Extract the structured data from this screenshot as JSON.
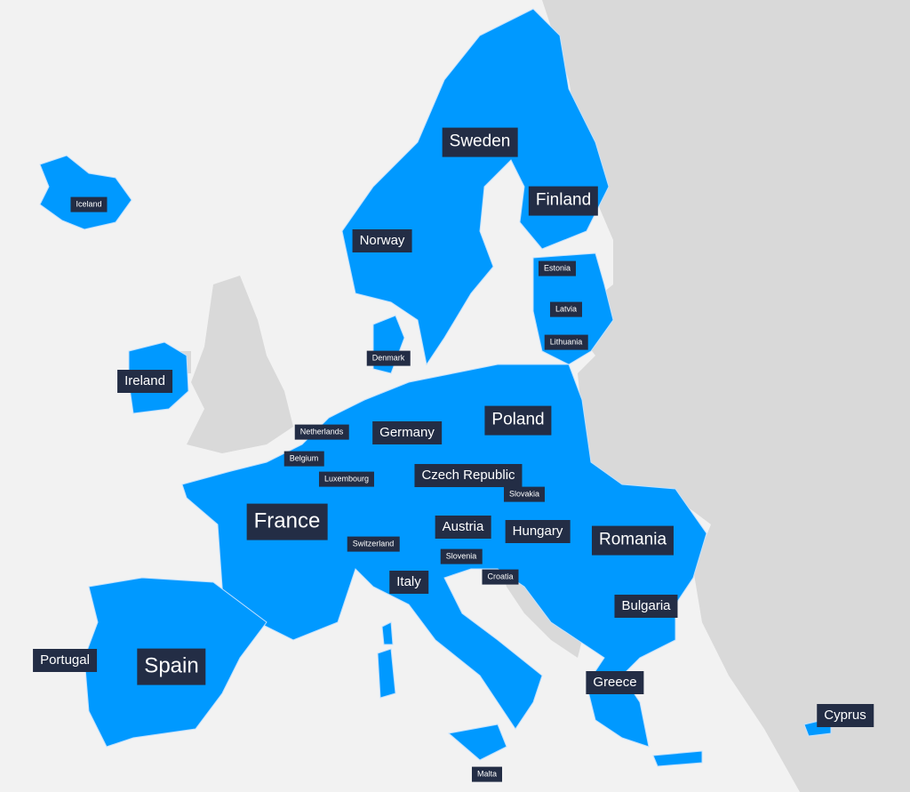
{
  "colors": {
    "eu": "#0099ff",
    "non_eu": "#d9d9d9",
    "sea": "#f2f2f2",
    "label_bg": "#232d45",
    "label_text": "#ffffff",
    "border": "#cfe8ff"
  },
  "labels": [
    {
      "id": "sweden",
      "text": "Sweden"
    },
    {
      "id": "finland",
      "text": "Finland"
    },
    {
      "id": "norway",
      "text": "Norway"
    },
    {
      "id": "iceland",
      "text": "Iceland"
    },
    {
      "id": "estonia",
      "text": "Estonia"
    },
    {
      "id": "latvia",
      "text": "Latvia"
    },
    {
      "id": "lithuania",
      "text": "Lithuania"
    },
    {
      "id": "denmark",
      "text": "Denmark"
    },
    {
      "id": "ireland",
      "text": "Ireland"
    },
    {
      "id": "netherlands",
      "text": "Netherlands"
    },
    {
      "id": "germany",
      "text": "Germany"
    },
    {
      "id": "poland",
      "text": "Poland"
    },
    {
      "id": "belgium",
      "text": "Belgium"
    },
    {
      "id": "luxembourg",
      "text": "Luxembourg"
    },
    {
      "id": "czech",
      "text": "Czech Republic"
    },
    {
      "id": "slovakia",
      "text": "Slovakia"
    },
    {
      "id": "france",
      "text": "France"
    },
    {
      "id": "austria",
      "text": "Austria"
    },
    {
      "id": "hungary",
      "text": "Hungary"
    },
    {
      "id": "romania",
      "text": "Romania"
    },
    {
      "id": "switzerland",
      "text": "Switzerland"
    },
    {
      "id": "slovenia",
      "text": "Slovenia"
    },
    {
      "id": "croatia",
      "text": "Croatia"
    },
    {
      "id": "italy",
      "text": "Italy"
    },
    {
      "id": "bulgaria",
      "text": "Bulgaria"
    },
    {
      "id": "portugal",
      "text": "Portugal"
    },
    {
      "id": "spain",
      "text": "Spain"
    },
    {
      "id": "greece",
      "text": "Greece"
    },
    {
      "id": "cyprus",
      "text": "Cyprus"
    },
    {
      "id": "malta",
      "text": "Malta"
    }
  ]
}
